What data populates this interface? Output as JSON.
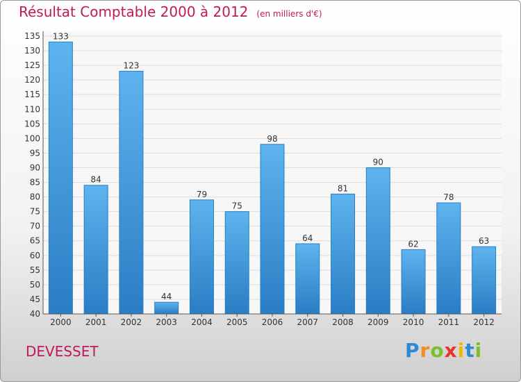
{
  "chart_data": {
    "type": "bar",
    "title": "Résultat Comptable 2000 à 2012",
    "subtitle": "(en milliers d'€)",
    "categories": [
      "2000",
      "2001",
      "2002",
      "2003",
      "2004",
      "2005",
      "2006",
      "2007",
      "2008",
      "2009",
      "2010",
      "2011",
      "2012"
    ],
    "values": [
      133,
      84,
      123,
      44,
      79,
      75,
      98,
      64,
      81,
      90,
      62,
      78,
      63
    ],
    "ylim": [
      40,
      135
    ],
    "yticks": [
      40,
      45,
      50,
      55,
      60,
      65,
      70,
      75,
      80,
      85,
      90,
      95,
      100,
      105,
      110,
      115,
      120,
      125,
      130,
      135
    ],
    "grid": true,
    "bar_color": "#4aa3e6",
    "bar_color_dark": "#2a7dc4",
    "title_color": "#c2185b"
  },
  "footer": {
    "place": "DEVESSET",
    "logo_letters": [
      "P",
      "r",
      "o",
      "x",
      "i",
      "t",
      "i"
    ],
    "logo_colors": [
      "#2a8bd4",
      "#f28c1b",
      "#7bbf2a",
      "#e8322d",
      "#f2b705",
      "#2a8bd4",
      "#7bbf2a"
    ]
  }
}
